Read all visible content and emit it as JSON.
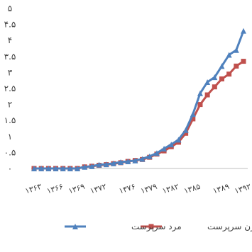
{
  "chart_data": {
    "type": "line",
    "title": "",
    "xlabel": "",
    "ylabel": "",
    "ylim": [
      0,
      5
    ],
    "y_ticks": [
      "۰",
      "۰.۵",
      "۱",
      "۱.۵",
      "۲",
      "۲.۵",
      "۳",
      "۳.۵",
      "۴",
      "۴.۵",
      "۵"
    ],
    "y_tick_values": [
      0,
      0.5,
      1,
      1.5,
      2,
      2.5,
      3,
      3.5,
      4,
      4.5,
      5
    ],
    "grid": false,
    "legend_position": "bottom",
    "x": [
      1363,
      1364,
      1365,
      1366,
      1367,
      1368,
      1369,
      1370,
      1371,
      1372,
      1373,
      1374,
      1375,
      1376,
      1377,
      1378,
      1379,
      1380,
      1381,
      1382,
      1383,
      1384,
      1385,
      1386,
      1387,
      1388,
      1389,
      1390,
      1391,
      1392
    ],
    "x_tick_labels": [
      "۱۳۶۳",
      "۱۳۶۶",
      "۱۳۶۹",
      "۱۳۷۲",
      "۱۳۷۶",
      "۱۳۷۹",
      "۱۳۸۲",
      "۱۳۸۵",
      "۱۳۸۹",
      "۱۳۹۲"
    ],
    "x_tick_values": [
      1363,
      1366,
      1369,
      1372,
      1376,
      1379,
      1382,
      1385,
      1389,
      1392
    ],
    "series": [
      {
        "name": "مرد سرپرست",
        "color": "#4f81bd",
        "marker": "triangle",
        "values": [
          0.0,
          0.0,
          0.0,
          0.0,
          0.0,
          0.0,
          0.0,
          0.05,
          0.07,
          0.12,
          0.13,
          0.16,
          0.2,
          0.22,
          0.25,
          0.3,
          0.38,
          0.48,
          0.62,
          0.75,
          0.9,
          1.2,
          1.7,
          2.35,
          2.7,
          2.85,
          3.2,
          3.55,
          3.7,
          4.3
        ]
      },
      {
        "name": "زن سرپرست",
        "color": "#c0504d",
        "marker": "square",
        "values": [
          0.0,
          0.0,
          0.0,
          0.0,
          0.0,
          0.0,
          0.0,
          0.05,
          0.07,
          0.1,
          0.12,
          0.15,
          0.18,
          0.22,
          0.25,
          0.28,
          0.35,
          0.45,
          0.55,
          0.68,
          0.82,
          1.1,
          1.55,
          2.0,
          2.3,
          2.55,
          2.8,
          2.95,
          3.2,
          3.35
        ]
      }
    ]
  }
}
